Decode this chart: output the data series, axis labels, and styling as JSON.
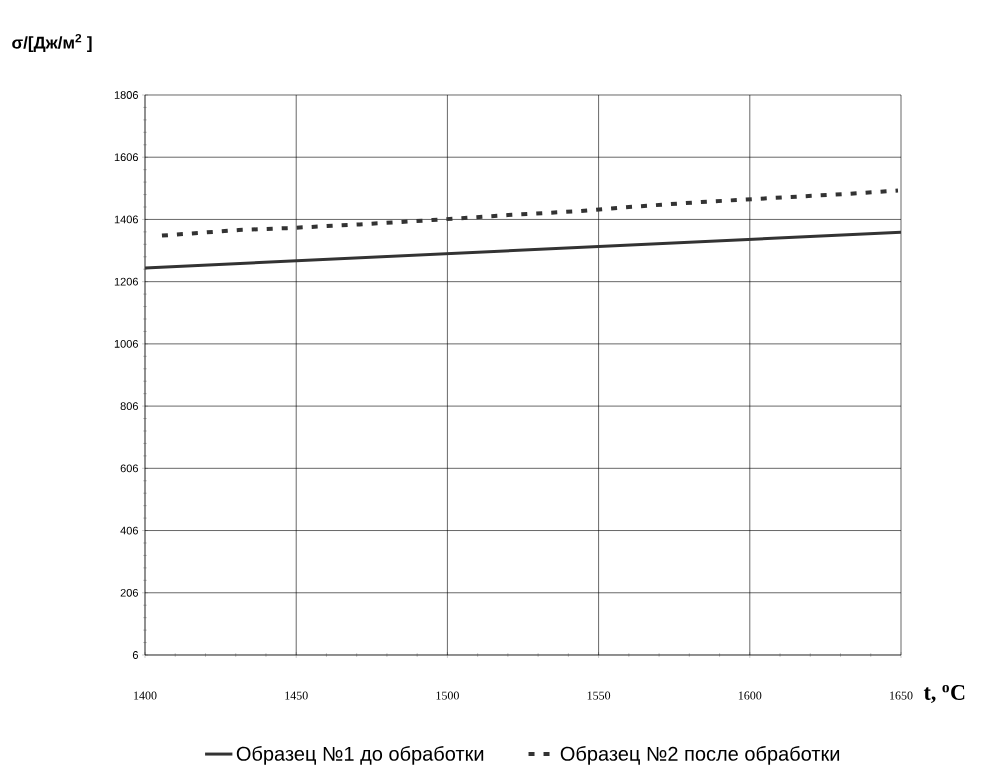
{
  "chart_data": {
    "type": "line",
    "ylabel": "σ/[Дж/м$^{2}$ ]",
    "xlabel": "t, $^{o}$C",
    "xlim": [
      1400,
      1650
    ],
    "xticks": [
      1400,
      1450,
      1500,
      1550,
      1600,
      1650
    ],
    "ylim": [
      6,
      1806
    ],
    "yticks": [
      6,
      206,
      406,
      606,
      806,
      1006,
      1206,
      1406,
      1606,
      1806
    ],
    "grid": true,
    "legend": "bottom",
    "marker": "none",
    "series": [
      {
        "name": "Образец №1 до обработки",
        "color": "#333333",
        "line_style": "solid",
        "x": [
          1400,
          1650
        ],
        "values": [
          1250,
          1365
        ]
      },
      {
        "name": "Образец №2 после обработки",
        "color": "#333333",
        "line_style": "dashed",
        "x": [
          1405.6,
          1431,
          1447,
          1471,
          1495,
          1520,
          1544,
          1560,
          1584,
          1608,
          1632,
          1649
        ],
        "values": [
          1354,
          1372,
          1378,
          1390,
          1404,
          1420,
          1433,
          1446,
          1462,
          1475,
          1488,
          1499
        ]
      }
    ]
  }
}
